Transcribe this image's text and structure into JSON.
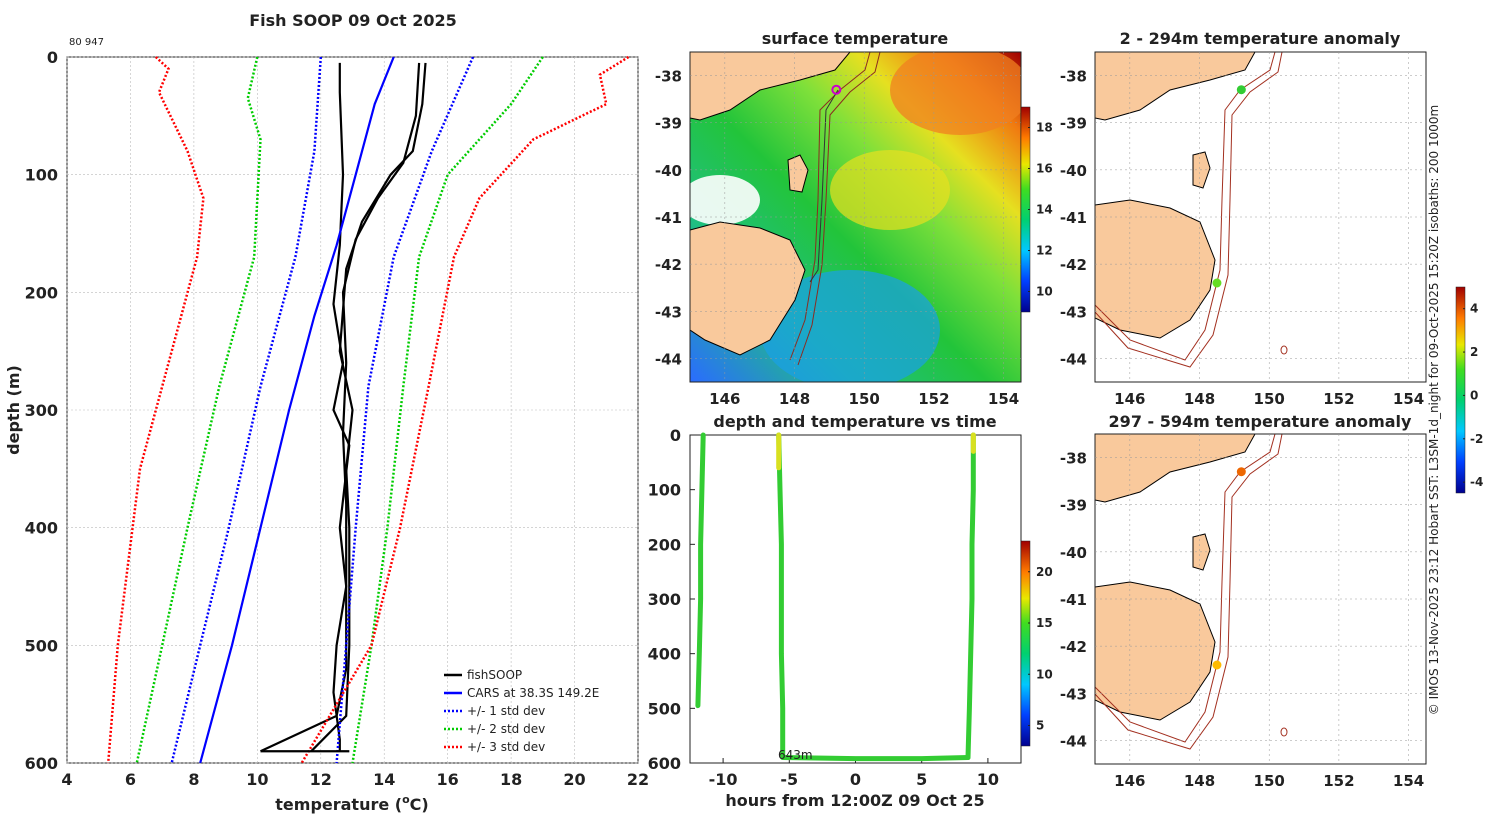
{
  "chart_data": [
    {
      "type": "line",
      "title": "Fish SOOP 09 Oct 2025",
      "corner_label": "80 947",
      "xlabel": "temperature (",
      "xlabel_sup": "o",
      "xlabel_tail": "C)",
      "ylabel": "depth (m)",
      "xlim": [
        4,
        22
      ],
      "ylim": [
        0,
        600
      ],
      "xticks": [
        "4",
        "6",
        "8",
        "10",
        "12",
        "14",
        "16",
        "18",
        "20",
        "22"
      ],
      "yticks": [
        "0",
        "100",
        "200",
        "300",
        "400",
        "500",
        "600"
      ],
      "grid": true,
      "legend_position": "bottom-right",
      "series": [
        {
          "name": "fishSOOP",
          "color": "#000000",
          "style": "solid",
          "points": [
            [
              12.6,
              5
            ],
            [
              12.6,
              30
            ],
            [
              12.7,
              100
            ],
            [
              12.6,
              160
            ],
            [
              12.4,
              210
            ],
            [
              12.7,
              260
            ],
            [
              12.4,
              300
            ],
            [
              12.9,
              330
            ],
            [
              12.6,
              400
            ],
            [
              12.8,
              450
            ],
            [
              12.5,
              500
            ],
            [
              12.4,
              540
            ],
            [
              12.6,
              580
            ],
            [
              12.6,
              590
            ]
          ]
        },
        {
          "name": "fishSOOP cast 2",
          "color": "#000000",
          "style": "solid",
          "points": [
            [
              15.3,
              5
            ],
            [
              15.2,
              40
            ],
            [
              14.9,
              80
            ],
            [
              14.2,
              100
            ],
            [
              13.3,
              140
            ],
            [
              12.8,
              180
            ],
            [
              12.6,
              250
            ],
            [
              13.0,
              300
            ],
            [
              12.8,
              350
            ],
            [
              12.9,
              400
            ],
            [
              12.9,
              500
            ],
            [
              12.8,
              560
            ],
            [
              11.7,
              590
            ]
          ]
        },
        {
          "name": "fishSOOP cast 3",
          "color": "#000000",
          "style": "solid",
          "points": [
            [
              15.1,
              5
            ],
            [
              15.0,
              50
            ],
            [
              14.6,
              90
            ],
            [
              13.8,
              120
            ],
            [
              13.1,
              155
            ],
            [
              12.7,
              200
            ],
            [
              12.8,
              260
            ],
            [
              12.7,
              320
            ],
            [
              12.8,
              380
            ],
            [
              12.8,
              450
            ],
            [
              12.8,
              520
            ],
            [
              12.5,
              560
            ],
            [
              10.1,
              590
            ]
          ]
        },
        {
          "name": "CARS at 38.3S 149.2E",
          "color": "#0000ff",
          "style": "solid",
          "points": [
            [
              14.3,
              0
            ],
            [
              13.7,
              40
            ],
            [
              13.1,
              100
            ],
            [
              12.5,
              160
            ],
            [
              11.8,
              220
            ],
            [
              11.0,
              300
            ],
            [
              10.1,
              400
            ],
            [
              9.2,
              500
            ],
            [
              8.2,
              600
            ]
          ]
        },
        {
          "name": "+/- 1 std dev",
          "color": "#0000ff",
          "style": "dotted",
          "points": [
            [
              12.0,
              0
            ],
            [
              11.8,
              80
            ],
            [
              11.2,
              170
            ],
            [
              10.1,
              280
            ],
            [
              9.1,
              400
            ],
            [
              8.2,
              500
            ],
            [
              7.3,
              600
            ]
          ]
        },
        {
          "name": "+/- 1 std dev upper",
          "color": "#0000ff",
          "style": "dotted",
          "points": [
            [
              16.8,
              0
            ],
            [
              15.5,
              80
            ],
            [
              14.3,
              170
            ],
            [
              13.5,
              280
            ],
            [
              13.1,
              400
            ],
            [
              12.8,
              500
            ],
            [
              12.5,
              600
            ]
          ]
        },
        {
          "name": "+/- 2 std dev",
          "color": "#00cc00",
          "style": "dotted",
          "points": [
            [
              10.0,
              0
            ],
            [
              9.7,
              35
            ],
            [
              10.1,
              70
            ],
            [
              9.9,
              170
            ],
            [
              8.8,
              280
            ],
            [
              7.8,
              400
            ],
            [
              7.0,
              500
            ],
            [
              6.2,
              600
            ]
          ]
        },
        {
          "name": "+/- 2 std dev upper",
          "color": "#00cc00",
          "style": "dotted",
          "points": [
            [
              19.0,
              0
            ],
            [
              18.0,
              40
            ],
            [
              16.0,
              100
            ],
            [
              15.1,
              170
            ],
            [
              14.6,
              280
            ],
            [
              14.1,
              400
            ],
            [
              13.6,
              500
            ],
            [
              13.0,
              600
            ]
          ]
        },
        {
          "name": "+/- 3 std dev",
          "color": "#ff0000",
          "style": "dotted",
          "points": [
            [
              6.8,
              0
            ],
            [
              7.2,
              10
            ],
            [
              6.9,
              30
            ],
            [
              7.8,
              80
            ],
            [
              8.3,
              120
            ],
            [
              8.1,
              170
            ],
            [
              7.3,
              250
            ],
            [
              6.3,
              350
            ],
            [
              5.6,
              500
            ],
            [
              5.3,
              600
            ]
          ]
        },
        {
          "name": "+/- 3 std dev upper",
          "color": "#ff0000",
          "style": "dotted",
          "points": [
            [
              21.7,
              0
            ],
            [
              20.8,
              15
            ],
            [
              21.0,
              40
            ],
            [
              18.7,
              70
            ],
            [
              17.0,
              120
            ],
            [
              16.2,
              170
            ],
            [
              15.4,
              280
            ],
            [
              14.5,
              400
            ],
            [
              13.6,
              500
            ],
            [
              11.4,
              600
            ]
          ]
        }
      ],
      "legend": [
        "fishSOOP",
        "CARS at 38.3S 149.2E",
        "+/- 1 std dev",
        "+/- 2 std dev",
        "+/- 3 std dev"
      ]
    },
    {
      "type": "heatmap",
      "title": "surface temperature",
      "xlim": [
        145,
        154.5
      ],
      "ylim": [
        -44.5,
        -37.5
      ],
      "xticks": [
        "146",
        "148",
        "150",
        "152",
        "154"
      ],
      "yticks": [
        "-38",
        "-39",
        "-40",
        "-41",
        "-42",
        "-43",
        "-44"
      ],
      "colorbar_ticks": [
        "10",
        "12",
        "14",
        "16",
        "18"
      ],
      "colorbar_range": [
        9,
        19
      ],
      "vessel_marker": {
        "lon": 149.2,
        "lat": -38.3,
        "color": "#cc00cc"
      }
    },
    {
      "type": "scatter",
      "title": "depth and temperature vs time",
      "xlabel": "hours from 12:00Z 09 Oct 25",
      "xlim": [
        -12.5,
        12.5
      ],
      "ylim": [
        0,
        600
      ],
      "xticks": [
        "-10",
        "-5",
        "0",
        "5",
        "10"
      ],
      "yticks": [
        "0",
        "100",
        "200",
        "300",
        "400",
        "500",
        "600"
      ],
      "annotation": "643m",
      "colorbar_ticks": [
        "5",
        "10",
        "15",
        "20"
      ],
      "colorbar_range": [
        3,
        23
      ],
      "series": [
        {
          "name": "cast 1",
          "points": [
            [
              -11.5,
              0
            ],
            [
              -11.6,
              100
            ],
            [
              -11.7,
              200
            ],
            [
              -11.7,
              300
            ],
            [
              -11.8,
              400
            ],
            [
              -11.9,
              495
            ]
          ]
        },
        {
          "name": "cast 2",
          "points": [
            [
              -5.8,
              0
            ],
            [
              -5.7,
              100
            ],
            [
              -5.6,
              200
            ],
            [
              -5.6,
              300
            ],
            [
              -5.6,
              400
            ],
            [
              -5.5,
              500
            ],
            [
              -5.5,
              590
            ]
          ]
        },
        {
          "name": "bottom",
          "points": [
            [
              -5.5,
              590
            ],
            [
              0,
              592
            ],
            [
              5,
              592
            ],
            [
              8.5,
              590
            ]
          ]
        },
        {
          "name": "cast 3",
          "points": [
            [
              8.5,
              590
            ],
            [
              8.6,
              500
            ],
            [
              8.7,
              400
            ],
            [
              8.8,
              300
            ],
            [
              8.8,
              200
            ],
            [
              8.9,
              100
            ],
            [
              8.9,
              0
            ]
          ]
        }
      ]
    },
    {
      "type": "scatter",
      "title": "2 - 294m temperature anomaly",
      "xlim": [
        145,
        154.5
      ],
      "ylim": [
        -44.5,
        -37.5
      ],
      "xticks": [
        "146",
        "148",
        "150",
        "152",
        "154"
      ],
      "yticks": [
        "-38",
        "-39",
        "-40",
        "-41",
        "-42",
        "-43",
        "-44"
      ],
      "points": [
        {
          "lon": 149.2,
          "lat": -38.3,
          "anomaly": 0.3,
          "color": "#33cc33"
        },
        {
          "lon": 148.5,
          "lat": -42.4,
          "anomaly": 0.6,
          "color": "#66dd22"
        }
      ]
    },
    {
      "type": "scatter",
      "title": "297 - 594m temperature anomaly",
      "xlim": [
        145,
        154.5
      ],
      "ylim": [
        -44.5,
        -37.5
      ],
      "xticks": [
        "146",
        "148",
        "150",
        "152",
        "154"
      ],
      "yticks": [
        "-38",
        "-39",
        "-40",
        "-41",
        "-42",
        "-43",
        "-44"
      ],
      "points": [
        {
          "lon": 149.2,
          "lat": -38.3,
          "anomaly": 3.1,
          "color": "#ee6600"
        },
        {
          "lon": 148.5,
          "lat": -42.4,
          "anomaly": 2.0,
          "color": "#ffbb00"
        }
      ],
      "colorbar_ticks": [
        "4",
        "2",
        "0",
        "-2",
        "-4"
      ],
      "colorbar_range": [
        -4.5,
        5
      ]
    }
  ],
  "credit": "© IMOS 13-Nov-2025 23:12 Hobart SST: L3SM-1d_night for 09-Oct-2025 15:20Z isobaths: 200  1000m"
}
